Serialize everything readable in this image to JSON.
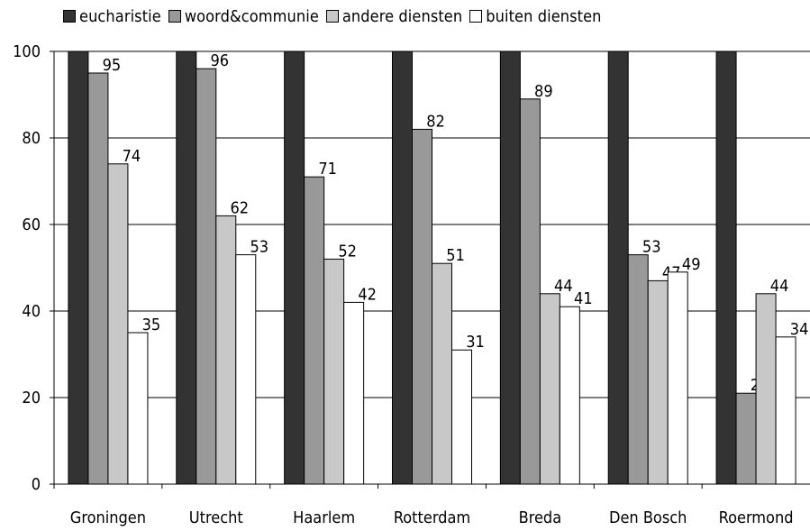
{
  "chart_data": {
    "type": "bar",
    "categories": [
      "Groningen",
      "Utrecht",
      "Haarlem",
      "Rotterdam",
      "Breda",
      "Den Bosch",
      "Roermond"
    ],
    "series": [
      {
        "name": "eucharistie",
        "color": "#333333",
        "values": [
          100,
          100,
          100,
          100,
          100,
          100,
          100
        ],
        "labels": [
          false,
          false,
          false,
          false,
          false,
          false,
          false
        ]
      },
      {
        "name": "woord&communie",
        "color": "#999999",
        "values": [
          95,
          96,
          71,
          82,
          89,
          53,
          21
        ],
        "labels": [
          true,
          true,
          true,
          true,
          true,
          true,
          true
        ]
      },
      {
        "name": "andere diensten",
        "color": "#c8c8c8",
        "values": [
          74,
          62,
          52,
          51,
          44,
          47,
          44
        ],
        "labels": [
          true,
          true,
          true,
          true,
          true,
          true,
          true
        ]
      },
      {
        "name": "buiten diensten",
        "color": "#ffffff",
        "values": [
          35,
          53,
          42,
          31,
          41,
          49,
          34
        ],
        "labels": [
          true,
          true,
          true,
          true,
          true,
          true,
          true
        ]
      }
    ],
    "ylim": [
      0,
      100
    ],
    "yticks": [
      0,
      20,
      40,
      60,
      80,
      100
    ],
    "grid": true,
    "legend_position": "top"
  }
}
